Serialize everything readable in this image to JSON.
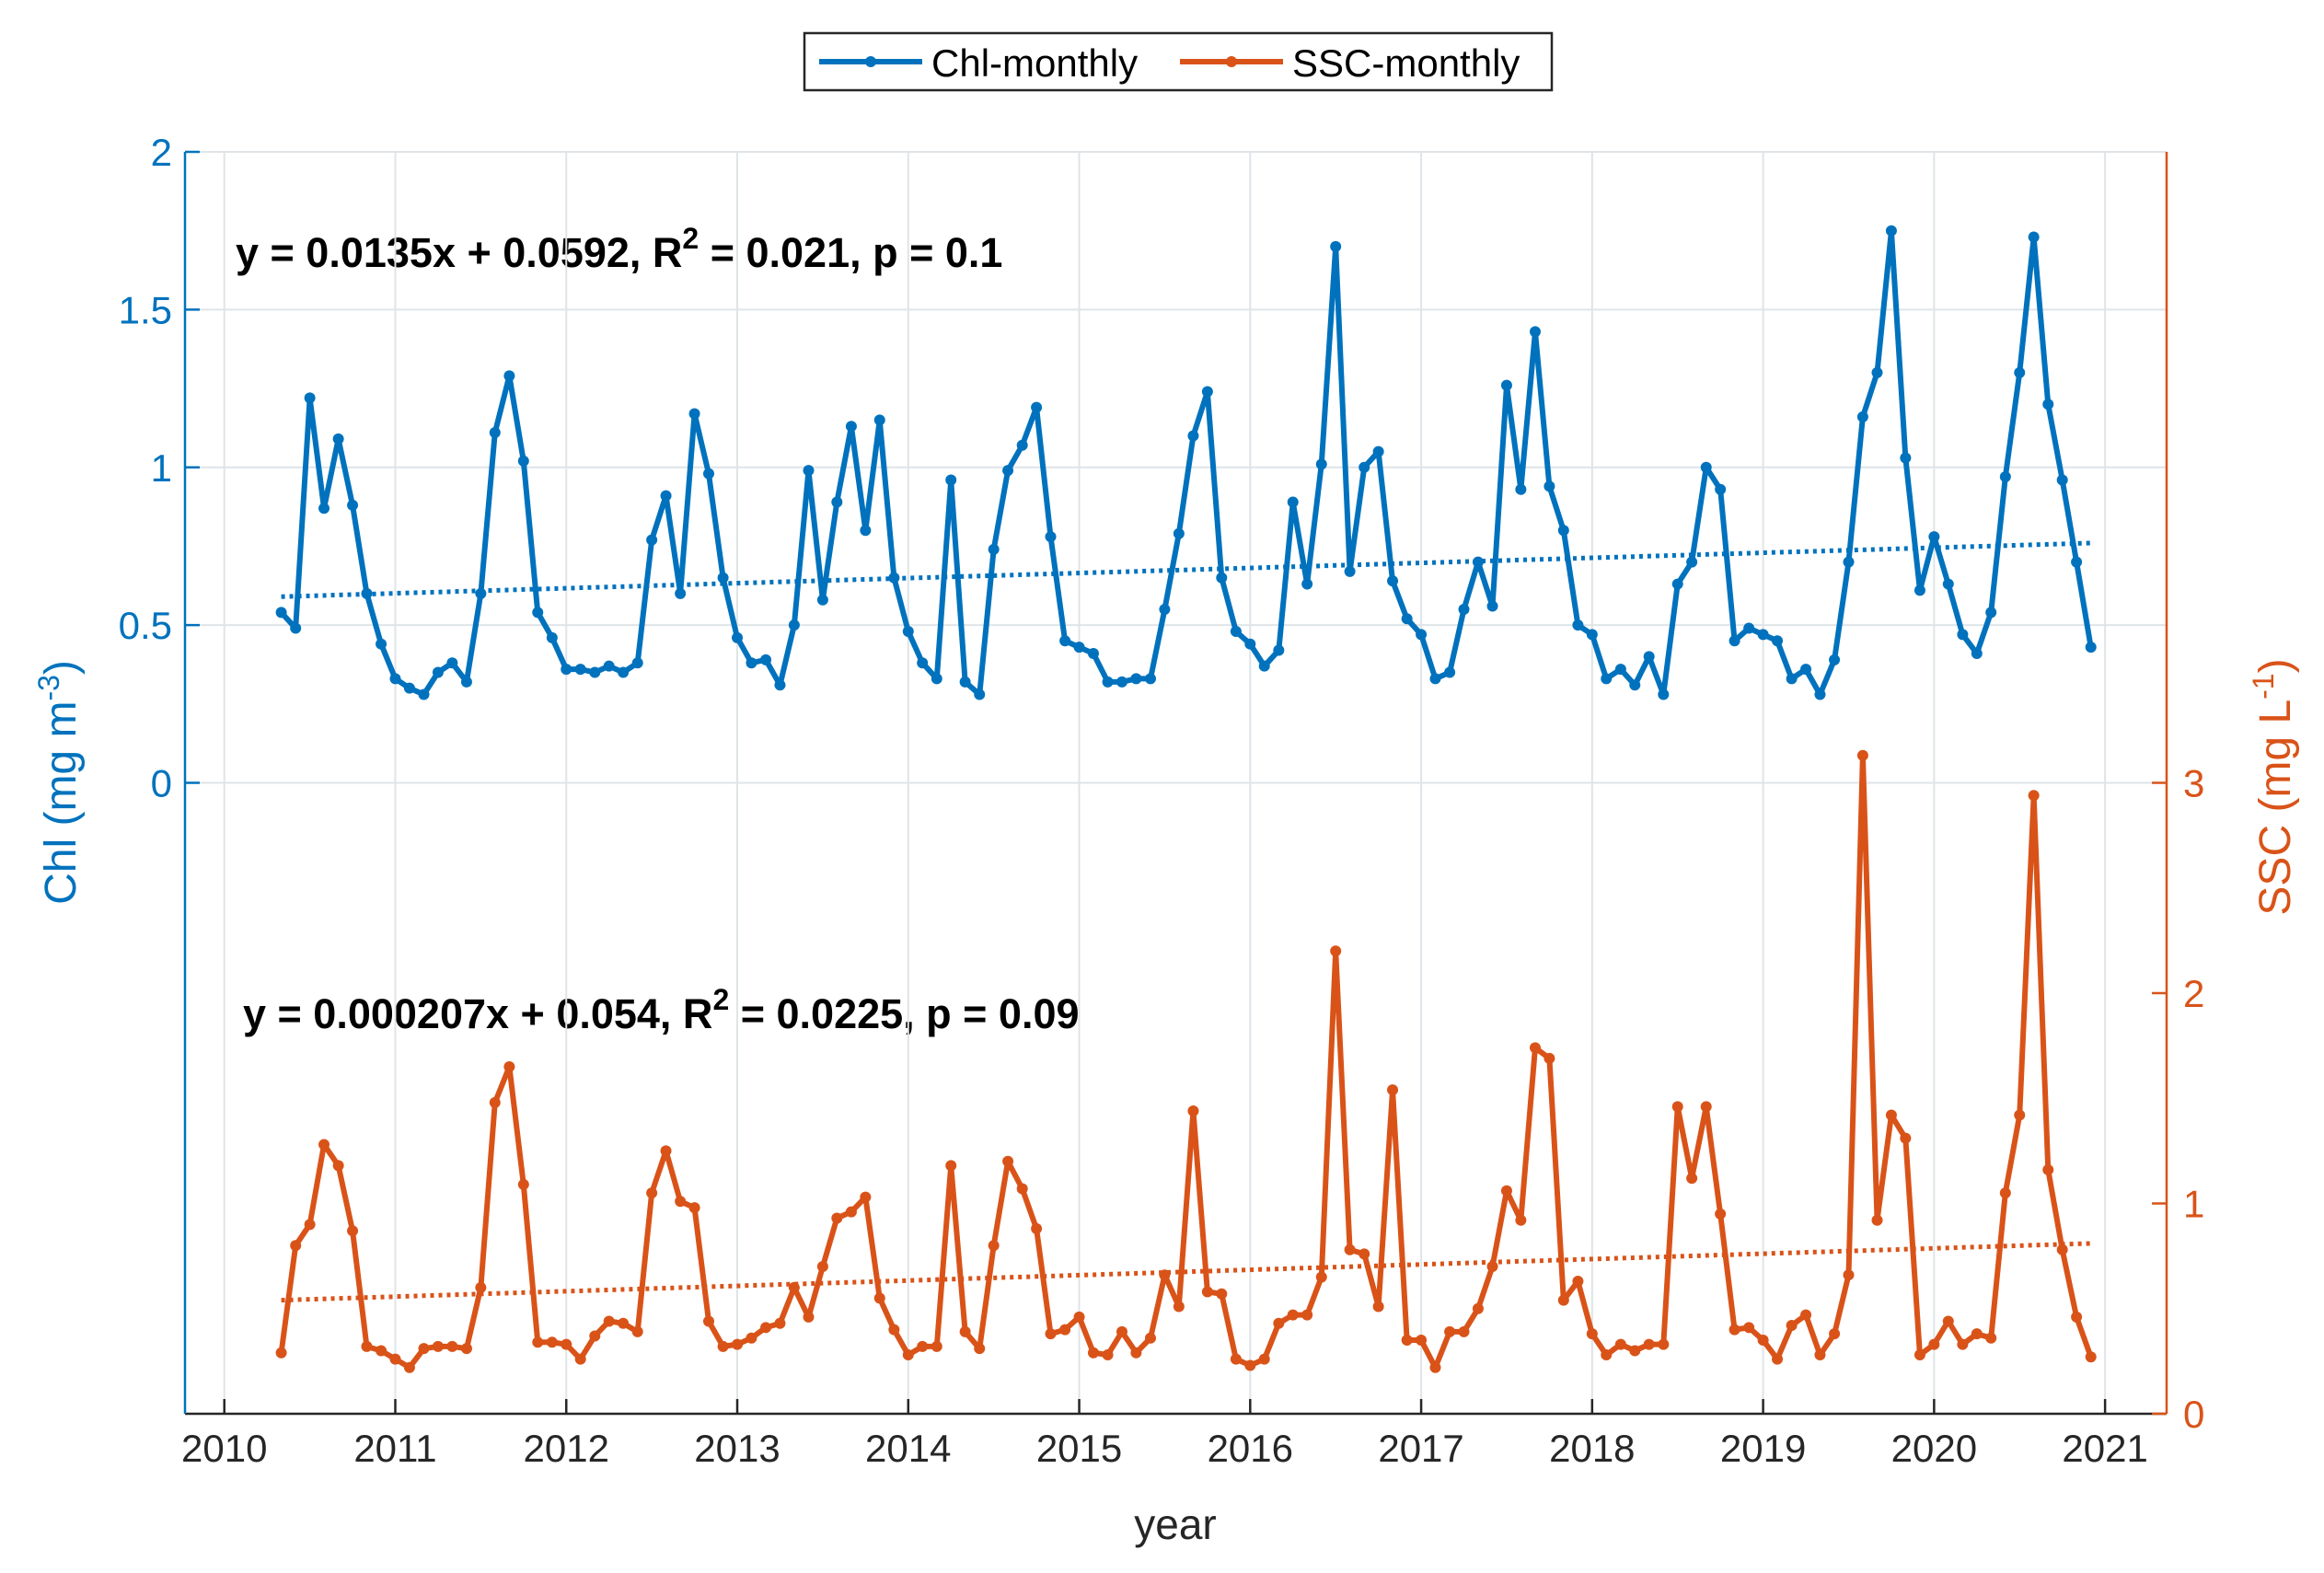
{
  "chart_data": {
    "type": "line",
    "x_label": "year",
    "y_label": {
      "parts": [
        "Chl (mg m",
        "-3",
        ")"
      ]
    },
    "y2_label": {
      "parts": [
        "SSC (mg L",
        "-1",
        ")"
      ]
    },
    "xlim": [
      2009.77,
      2021.36
    ],
    "xticks": [
      2010,
      2011,
      2012,
      2013,
      2014,
      2015,
      2016,
      2017,
      2018,
      2019,
      2020,
      2021
    ],
    "ylim": [
      -2,
      2
    ],
    "yticks": [
      0,
      0.5,
      1,
      1.5,
      2
    ],
    "y2lim": [
      0,
      6
    ],
    "y2ticks": [
      0,
      1,
      2,
      3
    ],
    "grid": true,
    "legend": "top",
    "annotations": [
      {
        "parts": [
          "y = 0.0135x + 0.0592, R",
          "2",
          " = 0.021, p = 0.1"
        ]
      },
      {
        "parts": [
          "y = 0.000207x + 0.054, R",
          "2",
          " = 0.0225, p = 0.09"
        ]
      }
    ],
    "x": [
      2010.333,
      2010.417,
      2010.5,
      2010.583,
      2010.667,
      2010.75,
      2010.833,
      2010.917,
      2011,
      2011.083,
      2011.167,
      2011.25,
      2011.333,
      2011.417,
      2011.5,
      2011.583,
      2011.667,
      2011.75,
      2011.833,
      2011.917,
      2012,
      2012.083,
      2012.167,
      2012.25,
      2012.333,
      2012.417,
      2012.5,
      2012.583,
      2012.667,
      2012.75,
      2012.833,
      2012.917,
      2013,
      2013.083,
      2013.167,
      2013.25,
      2013.333,
      2013.417,
      2013.5,
      2013.583,
      2013.667,
      2013.75,
      2013.833,
      2013.917,
      2014,
      2014.083,
      2014.167,
      2014.25,
      2014.333,
      2014.417,
      2014.5,
      2014.583,
      2014.667,
      2014.75,
      2014.833,
      2014.917,
      2015,
      2015.083,
      2015.167,
      2015.25,
      2015.333,
      2015.417,
      2015.5,
      2015.583,
      2015.667,
      2015.75,
      2015.833,
      2015.917,
      2016,
      2016.083,
      2016.167,
      2016.25,
      2016.333,
      2016.417,
      2016.5,
      2016.583,
      2016.667,
      2016.75,
      2016.833,
      2016.917,
      2017,
      2017.083,
      2017.167,
      2017.25,
      2017.333,
      2017.417,
      2017.5,
      2017.583,
      2017.667,
      2017.75,
      2017.833,
      2017.917,
      2018,
      2018.083,
      2018.167,
      2018.25,
      2018.333,
      2018.417,
      2018.5,
      2018.583,
      2018.667,
      2018.75,
      2018.833,
      2018.917,
      2019,
      2019.083,
      2019.167,
      2019.25,
      2019.333,
      2019.417,
      2019.5,
      2019.583,
      2019.667,
      2019.75,
      2019.833,
      2019.917,
      2020,
      2020.083,
      2020.167,
      2020.25,
      2020.333,
      2020.417,
      2020.5,
      2020.583,
      2020.667,
      2020.75,
      2020.833,
      2020.917
    ],
    "series": [
      {
        "name": "Chl-monthly",
        "color": "#0072BD",
        "axis": "y",
        "values": [
          0.54,
          0.49,
          1.22,
          0.87,
          1.09,
          0.88,
          0.6,
          0.44,
          0.33,
          0.3,
          0.28,
          0.35,
          0.38,
          0.32,
          0.6,
          1.11,
          1.29,
          1.02,
          0.54,
          0.46,
          0.36,
          0.36,
          0.35,
          0.37,
          0.35,
          0.38,
          0.77,
          0.91,
          0.6,
          1.17,
          0.98,
          0.65,
          0.46,
          0.38,
          0.39,
          0.31,
          0.5,
          0.99,
          0.58,
          0.89,
          1.13,
          0.8,
          1.15,
          0.65,
          0.48,
          0.38,
          0.33,
          0.96,
          0.32,
          0.28,
          0.74,
          0.99,
          1.07,
          1.19,
          0.78,
          0.45,
          0.43,
          0.41,
          0.32,
          0.32,
          0.33,
          0.33,
          0.55,
          0.79,
          1.1,
          1.24,
          0.65,
          0.48,
          0.44,
          0.37,
          0.42,
          0.89,
          0.63,
          1.01,
          1.7,
          0.67,
          1.0,
          1.05,
          0.64,
          0.52,
          0.47,
          0.33,
          0.35,
          0.55,
          0.7,
          0.56,
          1.26,
          0.93,
          1.43,
          0.94,
          0.8,
          0.5,
          0.47,
          0.33,
          0.36,
          0.31,
          0.4,
          0.28,
          0.63,
          0.7,
          1.0,
          0.93,
          0.45,
          0.49,
          0.47,
          0.45,
          0.33,
          0.36,
          0.28,
          0.39,
          0.7,
          1.16,
          1.3,
          1.75,
          1.03,
          0.61,
          0.78,
          0.63,
          0.47,
          0.41,
          0.54,
          0.97,
          1.3,
          1.73,
          1.2,
          0.96,
          0.7,
          0.43
        ],
        "trend": {
          "x": [
            2010.333,
            2020.917
          ],
          "values": [
            0.59,
            0.76
          ]
        }
      },
      {
        "name": "SSC-monthly",
        "color": "#D95319",
        "axis": "y2",
        "values": [
          0.29,
          0.8,
          0.9,
          1.28,
          1.18,
          0.87,
          0.32,
          0.3,
          0.26,
          0.22,
          0.31,
          0.32,
          0.32,
          0.31,
          0.6,
          1.48,
          1.65,
          1.09,
          0.34,
          0.34,
          0.33,
          0.26,
          0.37,
          0.44,
          0.43,
          0.39,
          1.05,
          1.25,
          1.01,
          0.98,
          0.44,
          0.32,
          0.33,
          0.36,
          0.41,
          0.43,
          0.6,
          0.46,
          0.7,
          0.93,
          0.96,
          1.03,
          0.55,
          0.4,
          0.28,
          0.32,
          0.32,
          1.18,
          0.39,
          0.31,
          0.8,
          1.2,
          1.07,
          0.88,
          0.38,
          0.4,
          0.46,
          0.29,
          0.28,
          0.39,
          0.29,
          0.36,
          0.66,
          0.51,
          1.44,
          0.58,
          0.57,
          0.26,
          0.23,
          0.26,
          0.43,
          0.47,
          0.47,
          0.65,
          2.2,
          0.78,
          0.76,
          0.51,
          1.54,
          0.35,
          0.35,
          0.22,
          0.39,
          0.39,
          0.5,
          0.7,
          1.06,
          0.92,
          1.74,
          1.69,
          0.54,
          0.63,
          0.38,
          0.28,
          0.33,
          0.3,
          0.33,
          0.33,
          1.46,
          1.12,
          1.46,
          0.95,
          0.4,
          0.41,
          0.35,
          0.26,
          0.42,
          0.47,
          0.28,
          0.38,
          0.66,
          3.13,
          0.92,
          1.42,
          1.31,
          0.28,
          0.33,
          0.44,
          0.33,
          0.38,
          0.36,
          1.05,
          1.42,
          2.94,
          1.16,
          0.78,
          0.46,
          0.27
        ],
        "trend": {
          "x": [
            2010.333,
            2020.917
          ],
          "values": [
            0.54,
            0.81
          ]
        }
      }
    ]
  }
}
